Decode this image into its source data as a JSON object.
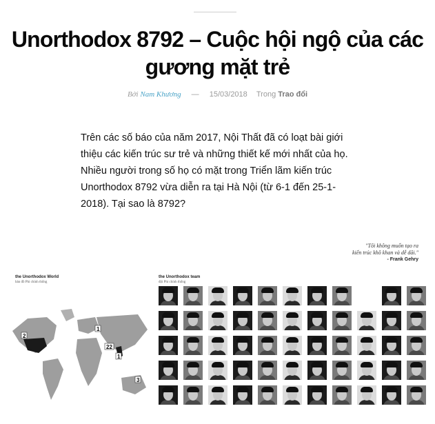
{
  "article": {
    "title": "Unorthodox 8792 – Cuộc hội ngộ của các gương mặt trẻ",
    "meta": {
      "by_label": "Bởi",
      "author": "Nam Khương",
      "separator": "—",
      "date": "15/03/2018",
      "in_label": "Trong",
      "category": "Trao đổi"
    },
    "lead": "Trên các số báo của năm 2017, Nội Thất đã có loạt bài giới thiệu các kiến trúc sư trẻ và những thiết kế mới nhất của họ. Nhiều người trong số họ có mặt trong Triển lãm kiến trúc Unorthodox 8792 vừa diễn ra tại Hà Nội (từ 6-1 đến 25-1-2018). Tại sao là 8792?"
  },
  "figure": {
    "quote": {
      "line1": "\"Tôi không muốn tạo ra",
      "line2": "kiến trúc khô khan và dễ dãi.\"",
      "cite": "- Frank Gehry"
    },
    "map_panel": {
      "title": "the Unorthodox World",
      "subtitle": "bản đồ Phi chính thống",
      "markers": [
        "2",
        "1",
        "22",
        "1",
        "3"
      ]
    },
    "team_panel": {
      "title": "the Unorthodox team",
      "subtitle": "đội Phi chính thống"
    }
  },
  "colors": {
    "author_link": "#4aa3c7",
    "title": "#0a0a0a",
    "meta": "#9a9a9a"
  }
}
